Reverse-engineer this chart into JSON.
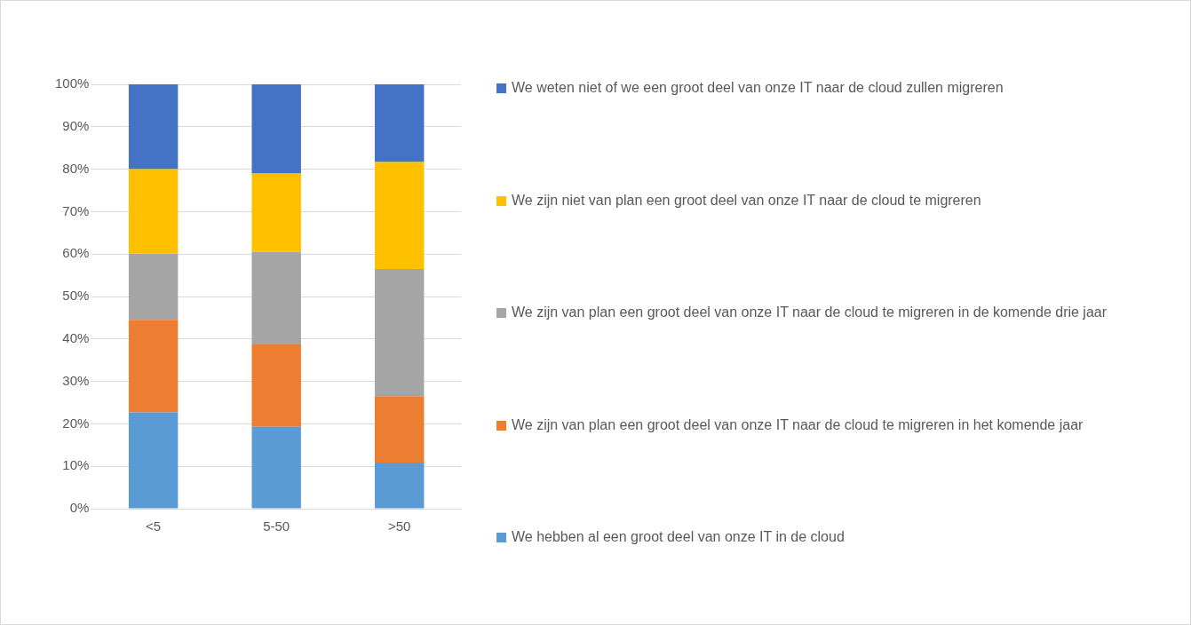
{
  "chart_data": {
    "type": "bar",
    "stacked": true,
    "categories": [
      "<5",
      "5-50",
      ">50"
    ],
    "series": [
      {
        "name": "We hebben al een groot deel van onze IT in de cloud",
        "color": "#5b9bd5",
        "values": [
          22.7,
          19.3,
          10.9
        ]
      },
      {
        "name": "We zijn van plan een groot deel van onze IT naar de cloud te migreren in het komende jaar",
        "color": "#ed7d31",
        "values": [
          21.8,
          19.4,
          15.6
        ]
      },
      {
        "name": "We zijn van plan een groot deel van onze IT naar de cloud te migreren in de komende drie jaar",
        "color": "#a5a5a5",
        "values": [
          15.6,
          21.8,
          30
        ]
      },
      {
        "name": "We zijn niet van plan een groot deel van onze IT naar de cloud te migreren",
        "color": "#ffc000",
        "values": [
          19.9,
          18.5,
          25.2
        ]
      },
      {
        "name": "We weten niet of we een groot deel van onze IT naar de cloud zullen migreren",
        "color": "#4472c4",
        "values": [
          20,
          21,
          18.3
        ]
      }
    ],
    "ylim": [
      0,
      100
    ],
    "yticks": [
      {
        "value": 0,
        "label": "0%"
      },
      {
        "value": 10,
        "label": "10%"
      },
      {
        "value": 20,
        "label": "20%"
      },
      {
        "value": 30,
        "label": "30%"
      },
      {
        "value": 40,
        "label": "40%"
      },
      {
        "value": 50,
        "label": "50%"
      },
      {
        "value": 60,
        "label": "60%"
      },
      {
        "value": 70,
        "label": "70%"
      },
      {
        "value": 80,
        "label": "80%"
      },
      {
        "value": 90,
        "label": "90%"
      },
      {
        "value": 100,
        "label": "100%"
      }
    ],
    "grid": "y",
    "legend": "right"
  }
}
